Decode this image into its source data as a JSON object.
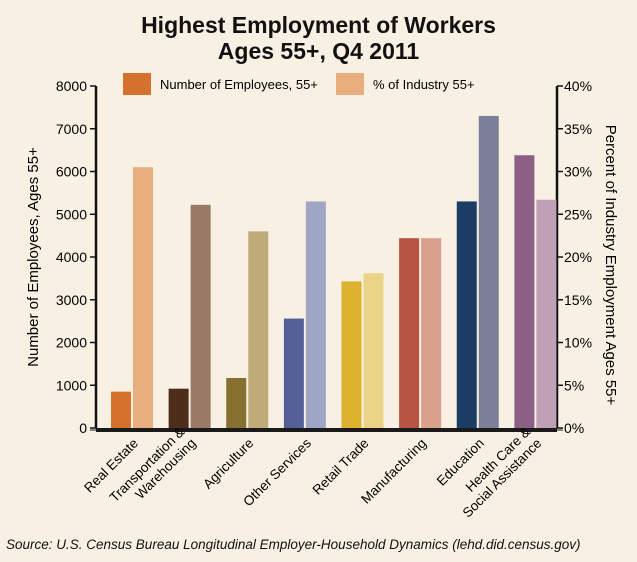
{
  "chart_data": {
    "type": "bar",
    "title": "Highest Employment of Workers",
    "subtitle": "Ages 55+, Q4 2011",
    "categories": [
      "Real Estate",
      "Transportation & Warehousing",
      "Agriculture",
      "Other Services",
      "Retail Trade",
      "Manufacturing",
      "Education",
      "Health Care & Social Assistance"
    ],
    "category_lines": [
      [
        "Real Estate"
      ],
      [
        "Transportation &",
        "Warehousing"
      ],
      [
        "Agriculture"
      ],
      [
        "Other Services"
      ],
      [
        "Retail Trade"
      ],
      [
        "Manufacturing"
      ],
      [
        "Education"
      ],
      [
        "Health Care &",
        "Social Assistance"
      ]
    ],
    "series": [
      {
        "name": "Number of Employees, 55+",
        "axis": "left",
        "values": [
          850,
          920,
          1170,
          2560,
          3430,
          4440,
          5300,
          6380
        ]
      },
      {
        "name": "% of Industry 55+",
        "axis": "right",
        "values": [
          30.5,
          26.1,
          23.0,
          26.5,
          18.1,
          22.2,
          36.5,
          26.7
        ]
      }
    ],
    "ylabel": "Number of Employees, Ages 55+",
    "y2label": "Percent of Industry Employment Ages 55+",
    "ylim": [
      0,
      8000
    ],
    "y2lim": [
      0,
      40
    ],
    "yticks": [
      "0",
      "1000",
      "2000",
      "3000",
      "4000",
      "5000",
      "6000",
      "7000",
      "8000"
    ],
    "y2ticks": [
      "0%",
      "5%",
      "10%",
      "15%",
      "20%",
      "25%",
      "30%",
      "35%",
      "40%"
    ],
    "legend_position": "top",
    "colors": {
      "employees": [
        "#d4712c",
        "#4e2d1a",
        "#857030",
        "#546199",
        "#dcb22e",
        "#b65343",
        "#1c3d63",
        "#8b5f86"
      ],
      "percent": [
        "#e8ae7e",
        "#9a7a66",
        "#bfab78",
        "#9ea5c5",
        "#ebd488",
        "#d9a08b",
        "#7c8098",
        "#bfa0b5"
      ],
      "legend_employees": "#d4712c",
      "legend_percent": "#e8ae7e"
    }
  },
  "source": "Source: U.S. Census Bureau Longitudinal Employer-Household Dynamics (lehd.did.census.gov)"
}
